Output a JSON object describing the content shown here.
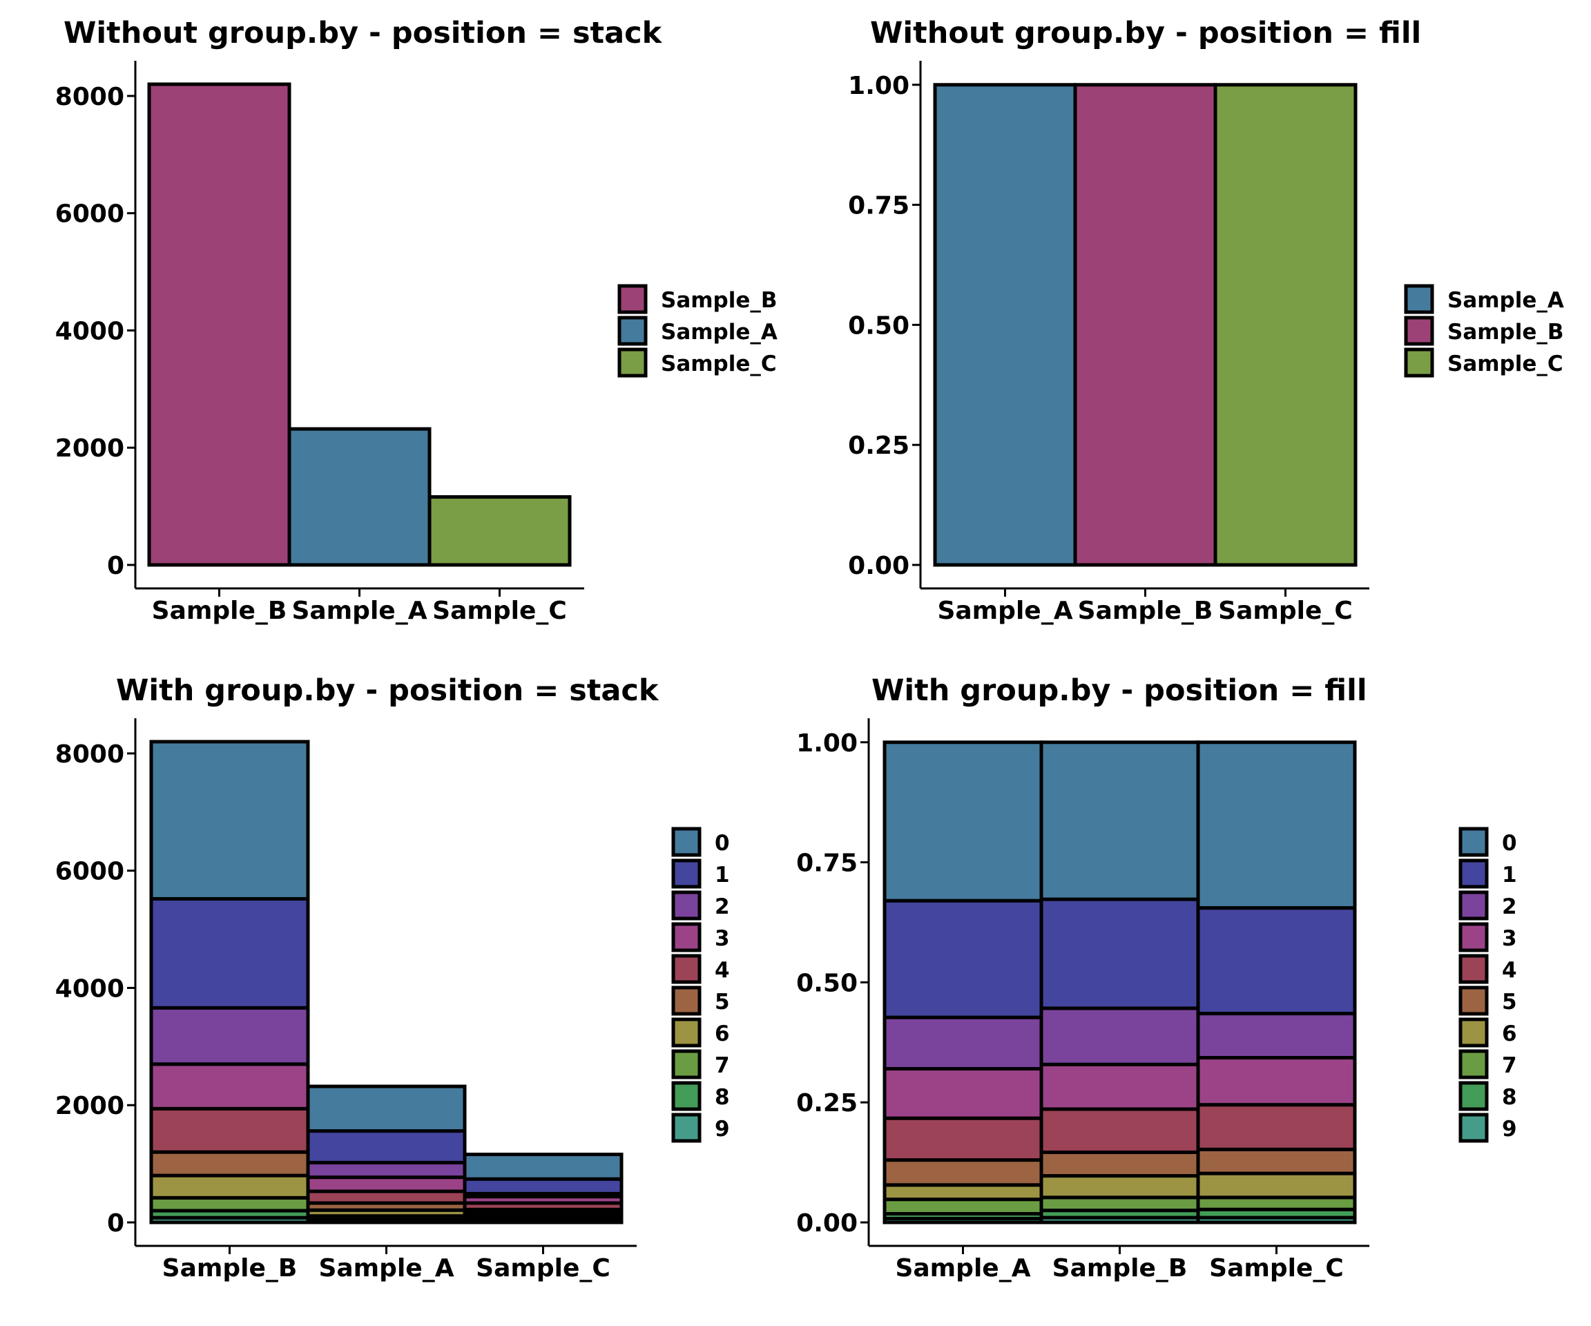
{
  "palette": {
    "Sample_A": "#457B9D",
    "Sample_B": "#9C4276",
    "Sample_C": "#7A9E45",
    "0": "#457B9D",
    "1": "#44459E",
    "2": "#7A439C",
    "3": "#9C4388",
    "4": "#9C4357",
    "5": "#9C6443",
    "6": "#9C9443",
    "7": "#6A9C43",
    "8": "#439C58",
    "9": "#459C8A"
  },
  "chart_data": [
    {
      "type": "bar",
      "title": "Without group.by - position = stack",
      "position": "stack",
      "categories": [
        "Sample_B",
        "Sample_A",
        "Sample_C"
      ],
      "values": [
        8200,
        2320,
        1160
      ],
      "ylim": [
        0,
        8600
      ],
      "yticks": [
        0,
        2000,
        4000,
        6000,
        8000
      ],
      "ytick_labels": [
        "0",
        "2000",
        "4000",
        "6000",
        "8000"
      ],
      "legend": [
        "Sample_B",
        "Sample_A",
        "Sample_C"
      ],
      "legend_position": "right",
      "grid": false
    },
    {
      "type": "bar",
      "title": "Without group.by - position = fill",
      "position": "fill",
      "categories": [
        "Sample_A",
        "Sample_B",
        "Sample_C"
      ],
      "values": [
        1.0,
        1.0,
        1.0
      ],
      "ylim": [
        0,
        1.05
      ],
      "yticks": [
        0,
        0.25,
        0.5,
        0.75,
        1.0
      ],
      "ytick_labels": [
        "0.00",
        "0.25",
        "0.50",
        "0.75",
        "1.00"
      ],
      "legend": [
        "Sample_A",
        "Sample_B",
        "Sample_C"
      ],
      "legend_position": "right",
      "grid": false
    },
    {
      "type": "bar",
      "title": "With group.by - position = stack",
      "position": "stack",
      "categories": [
        "Sample_B",
        "Sample_A",
        "Sample_C"
      ],
      "series": [
        {
          "name": "0",
          "values": [
            2680,
            760,
            420
          ]
        },
        {
          "name": "1",
          "values": [
            1860,
            540,
            250
          ]
        },
        {
          "name": "2",
          "values": [
            960,
            250,
            50
          ]
        },
        {
          "name": "3",
          "values": [
            760,
            240,
            110
          ]
        },
        {
          "name": "4",
          "values": [
            740,
            200,
            110
          ]
        },
        {
          "name": "5",
          "values": [
            400,
            120,
            60
          ]
        },
        {
          "name": "6",
          "values": [
            380,
            100,
            60
          ]
        },
        {
          "name": "7",
          "values": [
            220,
            60,
            30
          ]
        },
        {
          "name": "8",
          "values": [
            120,
            30,
            20
          ]
        },
        {
          "name": "9",
          "values": [
            80,
            20,
            50
          ]
        }
      ],
      "ylim": [
        0,
        8600
      ],
      "yticks": [
        0,
        2000,
        4000,
        6000,
        8000
      ],
      "ytick_labels": [
        "0",
        "2000",
        "4000",
        "6000",
        "8000"
      ],
      "legend": [
        "0",
        "1",
        "2",
        "3",
        "4",
        "5",
        "6",
        "7",
        "8",
        "9"
      ],
      "legend_position": "right",
      "grid": false
    },
    {
      "type": "bar",
      "title": "With group.by - position = fill",
      "position": "fill",
      "categories": [
        "Sample_A",
        "Sample_B",
        "Sample_C"
      ],
      "series": [
        {
          "name": "0",
          "values": [
            0.33,
            0.327,
            0.345
          ]
        },
        {
          "name": "1",
          "values": [
            0.243,
            0.227,
            0.22
          ]
        },
        {
          "name": "2",
          "values": [
            0.107,
            0.117,
            0.092
          ]
        },
        {
          "name": "3",
          "values": [
            0.103,
            0.093,
            0.098
          ]
        },
        {
          "name": "4",
          "values": [
            0.087,
            0.09,
            0.093
          ]
        },
        {
          "name": "5",
          "values": [
            0.052,
            0.049,
            0.05
          ]
        },
        {
          "name": "6",
          "values": [
            0.03,
            0.045,
            0.05
          ]
        },
        {
          "name": "7",
          "values": [
            0.03,
            0.027,
            0.025
          ]
        },
        {
          "name": "8",
          "values": [
            0.01,
            0.015,
            0.017
          ]
        },
        {
          "name": "9",
          "values": [
            0.008,
            0.01,
            0.01
          ]
        }
      ],
      "ylim": [
        0,
        1.05
      ],
      "yticks": [
        0,
        0.25,
        0.5,
        0.75,
        1.0
      ],
      "ytick_labels": [
        "0.00",
        "0.25",
        "0.50",
        "0.75",
        "1.00"
      ],
      "legend": [
        "0",
        "1",
        "2",
        "3",
        "4",
        "5",
        "6",
        "7",
        "8",
        "9"
      ],
      "legend_position": "right",
      "grid": false
    }
  ]
}
